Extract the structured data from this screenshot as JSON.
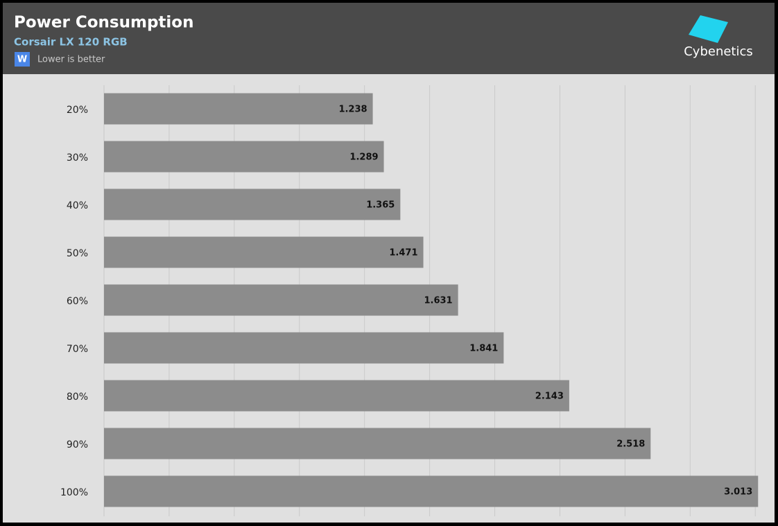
{
  "chart_data": {
    "type": "hbar",
    "title": "Power Consumption",
    "subtitle": "Corsair LX 120 RGB",
    "unit_icon": "W",
    "note": "Lower is better",
    "brand": "Cybenetics",
    "categories": [
      "20%",
      "30%",
      "40%",
      "50%",
      "60%",
      "70%",
      "80%",
      "90%",
      "100%"
    ],
    "values": [
      1.238,
      1.289,
      1.365,
      1.471,
      1.631,
      1.841,
      2.143,
      2.518,
      3.013
    ],
    "color": "#8c8c8c",
    "xlim": [
      0,
      3.06
    ],
    "xticks": [
      0,
      0.3,
      0.6,
      0.9,
      1.2,
      1.5,
      1.8,
      2.1,
      2.4,
      2.7,
      3.0
    ],
    "grid": true
  }
}
